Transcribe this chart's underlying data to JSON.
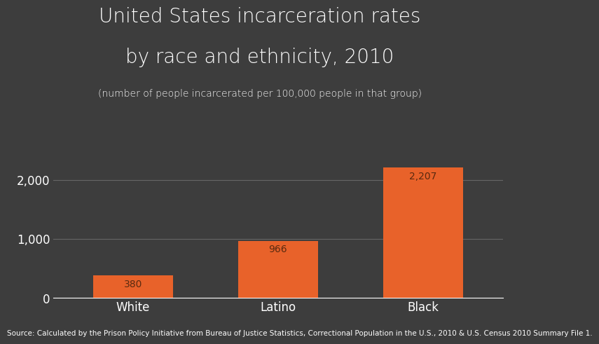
{
  "categories": [
    "White",
    "Latino",
    "Black"
  ],
  "values": [
    380,
    966,
    2207
  ],
  "bar_color": "#E8622A",
  "background_color": "#3d3d3d",
  "text_color": "#ffffff",
  "label_color": "#5a2a10",
  "title_line1": "United States incarceration rates",
  "title_line2": "by race and ethnicity, 2010",
  "subtitle": "(number of people incarcerated per 100,000 people in that group)",
  "source": "Source: Calculated by the Prison Policy Initiative from Bureau of Justice Statistics, Correctional Population in the U.S., 2010 & U.S. Census 2010 Summary File 1.",
  "yticks": [
    0,
    1000,
    2000
  ],
  "ytick_labels": [
    "0",
    "1,000",
    "2,000"
  ],
  "ylim": [
    0,
    2600
  ],
  "title_fontsize": 20,
  "subtitle_fontsize": 10,
  "tick_fontsize": 12,
  "source_fontsize": 7.5,
  "bar_value_fontsize": 10,
  "grid_color": "#666666"
}
